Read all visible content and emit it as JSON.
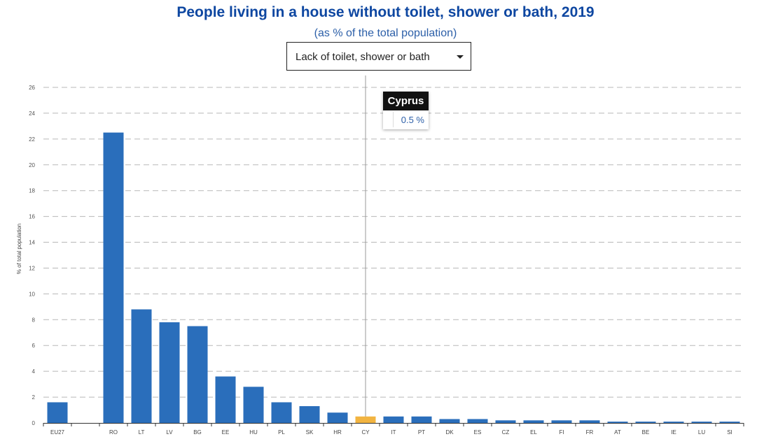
{
  "title": "People living in a house without toilet, shower or bath, 2019",
  "subtitle": "(as % of the total population)",
  "dropdown": {
    "selected": "Lack of toilet, shower or bath"
  },
  "tooltip": {
    "country": "Cyprus",
    "value": "0.5 %"
  },
  "colors": {
    "bar": "#2a6ebb",
    "highlight": "#f2b441",
    "title": "#0e47a1",
    "grid": "#b8b8b8"
  },
  "chart_data": {
    "type": "bar",
    "ylabel": "% of total population",
    "ylim": [
      0,
      26
    ],
    "yticks": [
      0,
      2,
      4,
      6,
      8,
      10,
      12,
      14,
      16,
      18,
      20,
      22,
      24,
      26
    ],
    "grid": true,
    "highlighted": "CY",
    "categories": [
      "EU27",
      "",
      "RO",
      "LT",
      "LV",
      "BG",
      "EE",
      "HU",
      "PL",
      "SK",
      "HR",
      "CY",
      "IT",
      "PT",
      "DK",
      "ES",
      "CZ",
      "EL",
      "FI",
      "FR",
      "AT",
      "BE",
      "IE",
      "LU",
      "SI"
    ],
    "values": [
      1.6,
      0,
      22.5,
      8.8,
      7.8,
      7.5,
      3.6,
      2.8,
      1.6,
      1.3,
      0.8,
      0.5,
      0.5,
      0.5,
      0.3,
      0.3,
      0.2,
      0.2,
      0.2,
      0.2,
      0.1,
      0.1,
      0.1,
      0.1,
      0.1
    ]
  }
}
